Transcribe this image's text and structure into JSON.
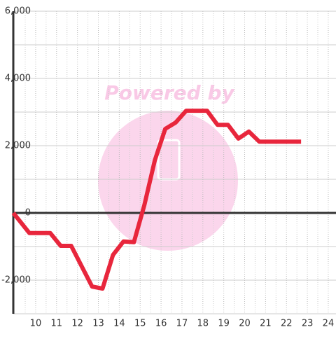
{
  "chart_data": {
    "type": "line",
    "watermark": "Powered by",
    "x": [
      8.93,
      9.7,
      10.7,
      11.2,
      11.7,
      12.7,
      13.2,
      13.7,
      14.2,
      14.7,
      15.2,
      15.7,
      16.2,
      16.7,
      17.2,
      17.7,
      18.2,
      18.7,
      19.2,
      19.7,
      20.2,
      20.7,
      21.2,
      21.7,
      22.2,
      22.7
    ],
    "series": [
      {
        "color": "#e8263c",
        "values": [
          0,
          -600,
          -600,
          -980,
          -980,
          -2190,
          -2250,
          -1250,
          -850,
          -870,
          230,
          1560,
          2500,
          2690,
          3040,
          3040,
          3040,
          2620,
          2620,
          2210,
          2420,
          2120,
          2120,
          2120,
          2120,
          2120
        ]
      }
    ],
    "xlim": [
      8.93,
      24.37
    ],
    "ylim": [
      -3000,
      6000
    ],
    "xticks": [
      10,
      11,
      12,
      13,
      14,
      15,
      16,
      17,
      18,
      19,
      20,
      21,
      22,
      23,
      24
    ],
    "x_minor_ticks": [
      9.5,
      10.5,
      11.5,
      12.5,
      13.5,
      14.5,
      15.5,
      16.5,
      17.5,
      18.5,
      19.5,
      20.5,
      21.5,
      22.5,
      23.5
    ],
    "yticks": [
      {
        "value": -2000,
        "label": "-2,000"
      },
      0,
      {
        "value": 2000,
        "label": "2,000"
      },
      {
        "value": 4000,
        "label": "4,000"
      },
      {
        "value": 6000,
        "label": "6,000"
      }
    ],
    "y_minor_ticks": [
      -3000,
      -1000,
      1000,
      3000,
      5000
    ],
    "grid": true
  }
}
